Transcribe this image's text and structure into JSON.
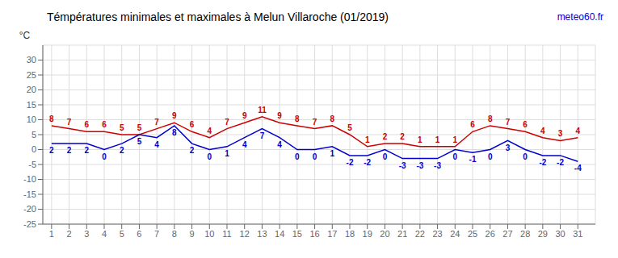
{
  "chart_data": {
    "type": "line",
    "title": "Témpératures minimales et maximales  à Melun Villaroche (01/2019)",
    "y_label": "°C",
    "annotations": [
      {
        "text": "meteo60.fr",
        "color": "#0000cc"
      }
    ],
    "x": [
      1,
      2,
      3,
      4,
      5,
      6,
      7,
      8,
      9,
      10,
      11,
      12,
      13,
      14,
      15,
      16,
      17,
      18,
      19,
      20,
      21,
      22,
      23,
      24,
      25,
      26,
      27,
      28,
      29,
      30,
      31
    ],
    "series": [
      {
        "color": "#cc0000",
        "values": [
          8,
          7,
          6,
          6,
          5,
          5,
          7,
          9,
          6,
          4,
          7,
          9,
          11,
          9,
          8,
          7,
          8,
          5,
          1,
          2,
          2,
          1,
          1,
          1,
          6,
          8,
          7,
          6,
          4,
          3,
          4
        ]
      },
      {
        "color": "#0000cc",
        "values": [
          2,
          2,
          2,
          0,
          2,
          5,
          4,
          8,
          2,
          0,
          1,
          4,
          7,
          4,
          0,
          0,
          1,
          -2,
          -2,
          0,
          -3,
          -3,
          -3,
          0,
          -1,
          0,
          3,
          0,
          -2,
          -2,
          -4
        ]
      }
    ],
    "xlim": [
      0.5,
      32
    ],
    "ylim": [
      -25,
      35
    ],
    "yticks": [
      -25,
      -20,
      -15,
      -10,
      -5,
      0,
      5,
      10,
      15,
      20,
      25,
      30
    ],
    "grid": true,
    "data_labels": true
  }
}
